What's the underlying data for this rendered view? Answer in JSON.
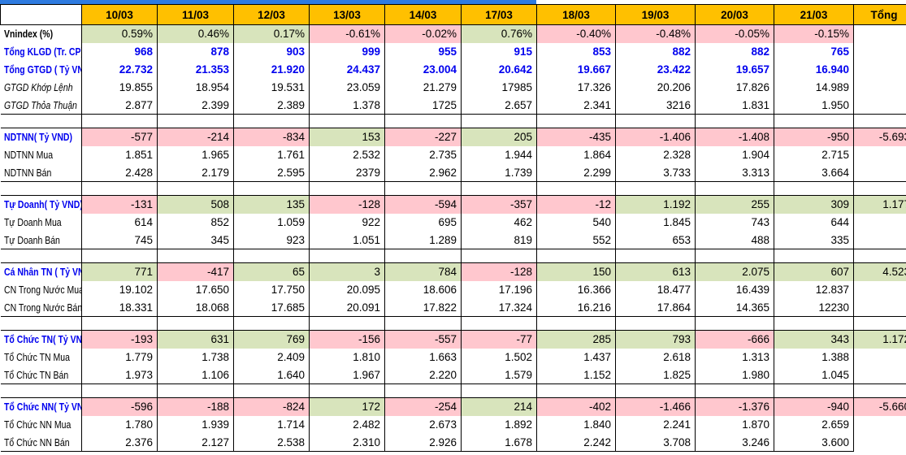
{
  "colors": {
    "header_bg": "#FFC000",
    "positive_bg": "#D8E4BC",
    "negative_bg": "#FFC7CE",
    "accent_text": "#0000EE",
    "top_bar": "#2E7BE0",
    "grid_border": "#000000"
  },
  "table": {
    "corner_label": "",
    "total_label": "Tổng",
    "date_columns": [
      "10/03",
      "11/03",
      "12/03",
      "13/03",
      "14/03",
      "17/03",
      "18/03",
      "19/03",
      "20/03",
      "21/03"
    ],
    "sections": [
      {
        "name": "market-overview",
        "rows": [
          {
            "id": "vnindex",
            "label": "Vnindex (%)",
            "label_style": "bold",
            "value_style": "plain",
            "fill": "by_sign",
            "values": [
              "0.59%",
              "0.46%",
              "0.17%",
              "-0.61%",
              "-0.02%",
              "0.76%",
              "-0.40%",
              "-0.48%",
              "-0.05%",
              "-0.15%"
            ],
            "total": ""
          },
          {
            "id": "tong-klgd",
            "label": "Tổng KLGD (Tr. CP)",
            "label_style": "bold-blue",
            "value_style": "bold-blue",
            "fill": "none",
            "values": [
              "968",
              "878",
              "903",
              "999",
              "955",
              "915",
              "853",
              "882",
              "882",
              "765"
            ],
            "total": ""
          },
          {
            "id": "tong-gtgd",
            "label": "Tổng GTGD ( Tỷ VND)",
            "label_style": "bold-blue",
            "value_style": "bold-blue",
            "fill": "none",
            "values": [
              "22.732",
              "21.353",
              "21.920",
              "24.437",
              "23.004",
              "20.642",
              "19.667",
              "23.422",
              "19.657",
              "16.940"
            ],
            "total": ""
          },
          {
            "id": "gtgd-khop-lenh",
            "label": "GTGD Khớp Lệnh",
            "label_style": "italic",
            "value_style": "plain",
            "fill": "none",
            "values": [
              "19.855",
              "18.954",
              "19.531",
              "23.059",
              "21.279",
              "17985",
              "17.326",
              "20.206",
              "17.826",
              "14.989"
            ],
            "total": ""
          },
          {
            "id": "gtgd-thoa-thuan",
            "label": "GTGD Thỏa Thuận",
            "label_style": "italic",
            "value_style": "plain",
            "fill": "none",
            "values": [
              "2.877",
              "2.399",
              "2.389",
              "1.378",
              "1725",
              "2.657",
              "2.341",
              "3216",
              "1.831",
              "1.950"
            ],
            "total": ""
          }
        ]
      },
      {
        "name": "ndtnn",
        "rows": [
          {
            "id": "ndtnn-net",
            "label": "NDTNN( Tỷ VND)",
            "label_style": "bold-blue",
            "value_style": "plain",
            "fill": "by_sign",
            "values": [
              "-577",
              "-214",
              "-834",
              "153",
              "-227",
              "205",
              "-435",
              "-1.406",
              "-1.408",
              "-950"
            ],
            "total": "-5.693"
          },
          {
            "id": "ndtnn-mua",
            "label": "NDTNN Mua",
            "label_style": "plain",
            "value_style": "plain",
            "fill": "none",
            "values": [
              "1.851",
              "1.965",
              "1.761",
              "2.532",
              "2.735",
              "1.944",
              "1.864",
              "2.328",
              "1.904",
              "2.715"
            ],
            "total": ""
          },
          {
            "id": "ndtnn-ban",
            "label": "NDTNN Bán",
            "label_style": "plain",
            "value_style": "plain",
            "fill": "none",
            "values": [
              "2.428",
              "2.179",
              "2.595",
              "2379",
              "2.962",
              "1.739",
              "2.299",
              "3.733",
              "3.313",
              "3.664"
            ],
            "total": ""
          }
        ]
      },
      {
        "name": "tu-doanh",
        "rows": [
          {
            "id": "tu-doanh-net",
            "label": "Tự Doanh( Tỷ VND)",
            "label_style": "bold-blue",
            "value_style": "plain",
            "fill": "by_sign",
            "values": [
              "-131",
              "508",
              "135",
              "-128",
              "-594",
              "-357",
              "-12",
              "1.192",
              "255",
              "309"
            ],
            "total": "1.177"
          },
          {
            "id": "tu-doanh-mua",
            "label": "Tự Doanh Mua",
            "label_style": "plain",
            "value_style": "plain",
            "fill": "none",
            "values": [
              "614",
              "852",
              "1.059",
              "922",
              "695",
              "462",
              "540",
              "1.845",
              "743",
              "644"
            ],
            "total": ""
          },
          {
            "id": "tu-doanh-ban",
            "label": "Tự Doanh Bán",
            "label_style": "plain",
            "value_style": "plain",
            "fill": "none",
            "values": [
              "745",
              "345",
              "923",
              "1.051",
              "1.289",
              "819",
              "552",
              "653",
              "488",
              "335"
            ],
            "total": ""
          }
        ]
      },
      {
        "name": "ca-nhan-tn",
        "rows": [
          {
            "id": "ca-nhan-net",
            "label": "Cá Nhân TN ( Tỷ VND)",
            "label_style": "bold-blue",
            "value_style": "plain",
            "fill": "by_sign",
            "values": [
              "771",
              "-417",
              "65",
              "3",
              "784",
              "-128",
              "150",
              "613",
              "2.075",
              "607"
            ],
            "total": "4.523"
          },
          {
            "id": "cn-mua",
            "label": "CN Trong Nước Mua",
            "label_style": "plain",
            "value_style": "plain",
            "fill": "none",
            "values": [
              "19.102",
              "17.650",
              "17.750",
              "20.095",
              "18.606",
              "17.196",
              "16.366",
              "18.477",
              "16.439",
              "12.837"
            ],
            "total": ""
          },
          {
            "id": "cn-ban",
            "label": "CN Trong Nước Bán",
            "label_style": "plain",
            "value_style": "plain",
            "fill": "none",
            "values": [
              "18.331",
              "18.068",
              "17.685",
              "20.091",
              "17.822",
              "17.324",
              "16.216",
              "17.864",
              "14.365",
              "12230"
            ],
            "total": ""
          }
        ]
      },
      {
        "name": "to-chuc-tn",
        "rows": [
          {
            "id": "to-chuc-tn-net",
            "label": "Tổ Chức TN( Tỷ VND)",
            "label_style": "bold-blue",
            "value_style": "plain",
            "fill": "by_sign",
            "values": [
              "-193",
              "631",
              "769",
              "-156",
              "-557",
              "-77",
              "285",
              "793",
              "-666",
              "343"
            ],
            "total": "1.172"
          },
          {
            "id": "to-chuc-tn-mua",
            "label": "Tổ Chức TN Mua",
            "label_style": "plain",
            "value_style": "plain",
            "fill": "none",
            "values": [
              "1.779",
              "1.738",
              "2.409",
              "1.810",
              "1.663",
              "1.502",
              "1.437",
              "2.618",
              "1.313",
              "1.388"
            ],
            "total": ""
          },
          {
            "id": "to-chuc-tn-ban",
            "label": "Tổ Chức TN Bán",
            "label_style": "plain",
            "value_style": "plain",
            "fill": "none",
            "values": [
              "1.973",
              "1.106",
              "1.640",
              "1.967",
              "2.220",
              "1.579",
              "1.152",
              "1.825",
              "1.980",
              "1.045"
            ],
            "total": ""
          }
        ]
      },
      {
        "name": "to-chuc-nn",
        "rows": [
          {
            "id": "to-chuc-nn-net",
            "label": "Tổ Chức NN( Tỷ VND)",
            "label_style": "bold-blue",
            "value_style": "plain",
            "fill": "by_sign",
            "values": [
              "-596",
              "-188",
              "-824",
              "172",
              "-254",
              "214",
              "-402",
              "-1.466",
              "-1.376",
              "-940"
            ],
            "total": "-5.660"
          },
          {
            "id": "to-chuc-nn-mua",
            "label": "Tổ Chức NN Mua",
            "label_style": "plain",
            "value_style": "plain",
            "fill": "none",
            "values": [
              "1.780",
              "1.939",
              "1.714",
              "2.482",
              "2.673",
              "1.892",
              "1.840",
              "2.241",
              "1.870",
              "2.659"
            ],
            "total": ""
          },
          {
            "id": "to-chuc-nn-ban",
            "label": "Tổ Chức NN Bán",
            "label_style": "plain",
            "value_style": "plain",
            "fill": "none",
            "values": [
              "2.376",
              "2.127",
              "2.538",
              "2.310",
              "2.926",
              "1.678",
              "2.242",
              "3.708",
              "3.246",
              "3.600"
            ],
            "total": ""
          }
        ]
      }
    ]
  }
}
